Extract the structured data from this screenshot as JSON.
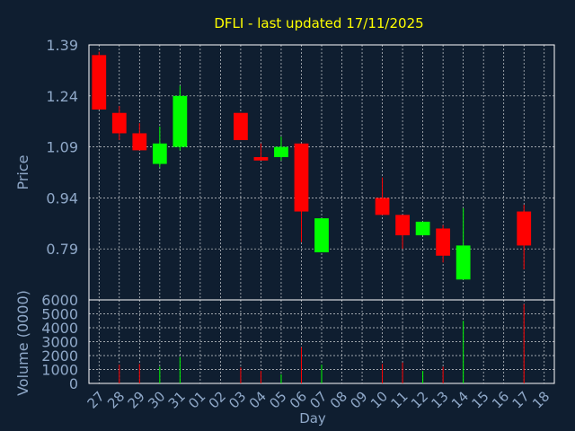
{
  "chart_data": [
    {
      "type": "candlestick",
      "title": "DFLI - last updated 17/11/2025",
      "ylabel": "Price",
      "xlabel": "Day",
      "ylim": [
        0.64,
        1.39
      ],
      "yticks": [
        1.39,
        1.24,
        1.09,
        0.94,
        0.79
      ],
      "grid": true,
      "colors": {
        "up": "#00ff00",
        "down": "#ff0000",
        "background": "#0f1e30",
        "title": "#ffff00",
        "axis_text": "#8fa8c8"
      },
      "x_labels": [
        "27",
        "28",
        "29",
        "30",
        "31",
        "01",
        "02",
        "03",
        "04",
        "05",
        "06",
        "07",
        "08",
        "09",
        "10",
        "11",
        "12",
        "13",
        "14",
        "15",
        "16",
        "17",
        "18"
      ],
      "candles": [
        {
          "x": "27",
          "open": 1.36,
          "high": 1.37,
          "low": 1.2,
          "close": 1.2
        },
        {
          "x": "28",
          "open": 1.19,
          "high": 1.21,
          "low": 1.11,
          "close": 1.13
        },
        {
          "x": "29",
          "open": 1.13,
          "high": 1.16,
          "low": 1.08,
          "close": 1.08
        },
        {
          "x": "30",
          "open": 1.04,
          "high": 1.15,
          "low": 1.03,
          "close": 1.1
        },
        {
          "x": "31",
          "open": 1.09,
          "high": 1.27,
          "low": 1.08,
          "close": 1.24
        },
        {
          "x": "03",
          "open": 1.19,
          "high": 1.19,
          "low": 1.11,
          "close": 1.11
        },
        {
          "x": "04",
          "open": 1.06,
          "high": 1.1,
          "low": 1.05,
          "close": 1.05
        },
        {
          "x": "05",
          "open": 1.06,
          "high": 1.12,
          "low": 1.05,
          "close": 1.09
        },
        {
          "x": "06",
          "open": 1.1,
          "high": 1.1,
          "low": 0.81,
          "close": 0.9
        },
        {
          "x": "07",
          "open": 0.78,
          "high": 0.88,
          "low": 0.78,
          "close": 0.88
        },
        {
          "x": "10",
          "open": 0.94,
          "high": 1.0,
          "low": 0.89,
          "close": 0.89
        },
        {
          "x": "11",
          "open": 0.89,
          "high": 0.89,
          "low": 0.79,
          "close": 0.83
        },
        {
          "x": "12",
          "open": 0.83,
          "high": 0.87,
          "low": 0.83,
          "close": 0.87
        },
        {
          "x": "13",
          "open": 0.85,
          "high": 0.86,
          "low": 0.75,
          "close": 0.77
        },
        {
          "x": "14",
          "open": 0.7,
          "high": 0.91,
          "low": 0.7,
          "close": 0.8
        },
        {
          "x": "17",
          "open": 0.9,
          "high": 0.92,
          "low": 0.73,
          "close": 0.8
        }
      ]
    },
    {
      "type": "bar",
      "ylabel": "Volume (0000)",
      "ylim": [
        0,
        6000
      ],
      "yticks": [
        6000,
        5000,
        4000,
        3000,
        2000,
        1000,
        0
      ],
      "grid": true,
      "x_labels": [
        "27",
        "28",
        "29",
        "30",
        "31",
        "01",
        "02",
        "03",
        "04",
        "05",
        "06",
        "07",
        "08",
        "09",
        "10",
        "11",
        "12",
        "13",
        "14",
        "15",
        "16",
        "17",
        "18"
      ],
      "values": [
        {
          "x": "28",
          "value": 1350,
          "direction": "down"
        },
        {
          "x": "29",
          "value": 1400,
          "direction": "down"
        },
        {
          "x": "30",
          "value": 1200,
          "direction": "up"
        },
        {
          "x": "31",
          "value": 1900,
          "direction": "up"
        },
        {
          "x": "03",
          "value": 1150,
          "direction": "down"
        },
        {
          "x": "04",
          "value": 900,
          "direction": "down"
        },
        {
          "x": "05",
          "value": 650,
          "direction": "up"
        },
        {
          "x": "06",
          "value": 2600,
          "direction": "down"
        },
        {
          "x": "07",
          "value": 1350,
          "direction": "up"
        },
        {
          "x": "10",
          "value": 1400,
          "direction": "down"
        },
        {
          "x": "11",
          "value": 1500,
          "direction": "down"
        },
        {
          "x": "12",
          "value": 900,
          "direction": "up"
        },
        {
          "x": "13",
          "value": 1200,
          "direction": "down"
        },
        {
          "x": "14",
          "value": 4500,
          "direction": "up"
        },
        {
          "x": "17",
          "value": 5700,
          "direction": "down"
        }
      ]
    }
  ]
}
